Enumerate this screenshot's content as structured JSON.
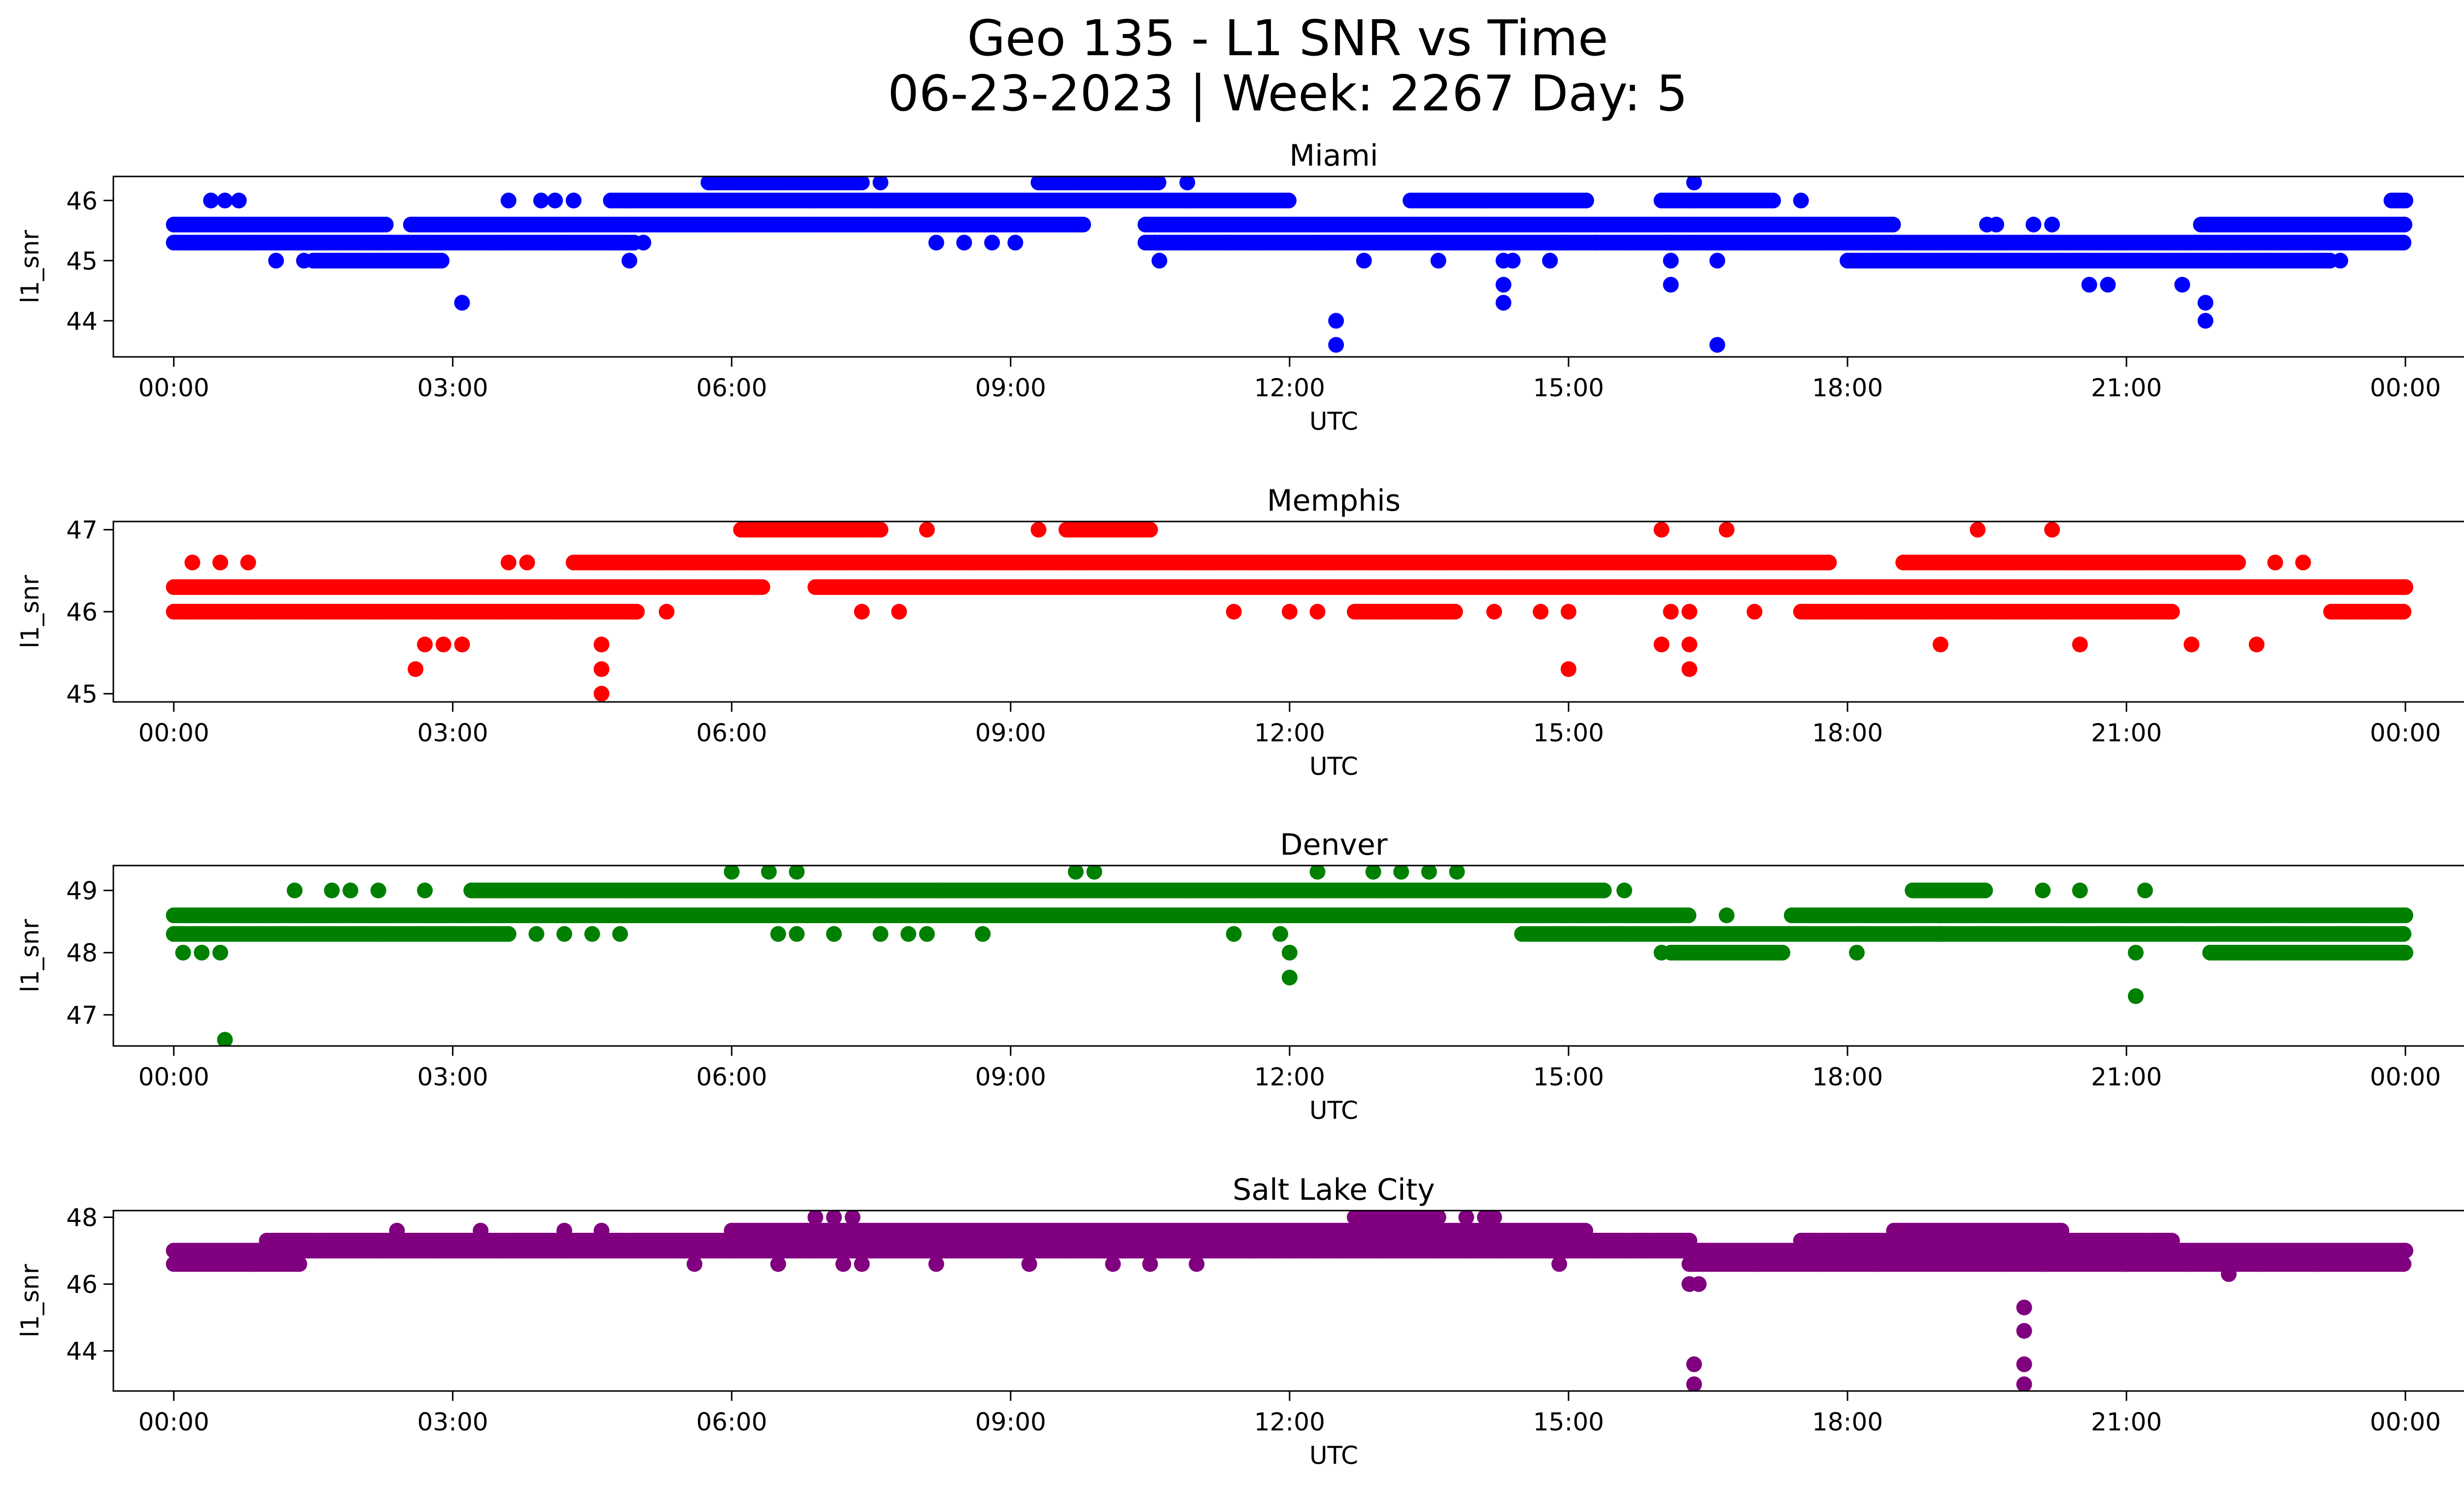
{
  "figure": {
    "title_line1": "Geo 135 - L1 SNR vs Time",
    "title_line2": "06-23-2023 | Week: 2267 Day: 5"
  },
  "chart_data": [
    {
      "type": "scatter",
      "title": "Miami",
      "xlabel": "UTC",
      "ylabel": "l1_snr",
      "color": "#0000ff",
      "x_ticks": [
        "00:00",
        "03:00",
        "06:00",
        "09:00",
        "12:00",
        "15:00",
        "18:00",
        "21:00",
        "00:00"
      ],
      "xlim_hours": [
        -0.65,
        25.6
      ],
      "ylim": [
        43.4,
        46.4
      ],
      "y_ticks": [
        44,
        45,
        46
      ],
      "bands": [
        {
          "y": 45.3,
          "segments": [
            [
              0.0,
              4.95
            ],
            [
              10.45,
              24.0
            ]
          ]
        },
        {
          "y": 45.6,
          "segments": [
            [
              0.0,
              2.3
            ],
            [
              2.55,
              9.8
            ],
            [
              10.45,
              18.5
            ],
            [
              21.8,
              24.0
            ]
          ]
        },
        {
          "y": 46.0,
          "segments": [
            [
              4.7,
              12.0
            ],
            [
              13.3,
              15.2
            ],
            [
              16.0,
              17.2
            ],
            [
              23.85,
              24.0
            ]
          ]
        },
        {
          "y": 46.3,
          "segments": [
            [
              5.75,
              7.4
            ],
            [
              9.3,
              10.6
            ]
          ]
        },
        {
          "y": 45.0,
          "segments": [
            [
              1.5,
              2.9
            ],
            [
              18.0,
              23.2
            ]
          ]
        }
      ],
      "points": [
        [
          0.4,
          46.0
        ],
        [
          0.55,
          46.0
        ],
        [
          0.7,
          46.0
        ],
        [
          1.1,
          45.0
        ],
        [
          1.4,
          45.0
        ],
        [
          3.1,
          44.3
        ],
        [
          3.6,
          46.0
        ],
        [
          3.95,
          46.0
        ],
        [
          4.1,
          46.0
        ],
        [
          4.3,
          46.0
        ],
        [
          4.9,
          45.0
        ],
        [
          5.05,
          45.3
        ],
        [
          7.6,
          46.3
        ],
        [
          8.2,
          45.3
        ],
        [
          8.5,
          45.3
        ],
        [
          8.8,
          45.3
        ],
        [
          9.05,
          45.3
        ],
        [
          10.55,
          45.3
        ],
        [
          10.6,
          45.0
        ],
        [
          10.9,
          46.3
        ],
        [
          11.3,
          45.3
        ],
        [
          12.5,
          44.0
        ],
        [
          12.5,
          43.6
        ],
        [
          12.8,
          45.0
        ],
        [
          13.6,
          45.0
        ],
        [
          14.1,
          46.0
        ],
        [
          14.3,
          45.0
        ],
        [
          14.3,
          44.6
        ],
        [
          14.3,
          44.3
        ],
        [
          14.4,
          45.0
        ],
        [
          14.8,
          45.0
        ],
        [
          15.3,
          45.3
        ],
        [
          16.1,
          45.0
        ],
        [
          16.1,
          44.6
        ],
        [
          16.1,
          45.3
        ],
        [
          16.35,
          46.3
        ],
        [
          16.6,
          45.0
        ],
        [
          16.6,
          43.6
        ],
        [
          17.5,
          46.0
        ],
        [
          19.5,
          45.6
        ],
        [
          19.6,
          45.6
        ],
        [
          20.0,
          45.6
        ],
        [
          20.2,
          45.6
        ],
        [
          20.6,
          44.6
        ],
        [
          20.8,
          44.6
        ],
        [
          21.6,
          44.6
        ],
        [
          21.85,
          44.3
        ],
        [
          21.85,
          44.0
        ],
        [
          22.2,
          45.0
        ],
        [
          22.5,
          45.0
        ],
        [
          23.3,
          45.0
        ]
      ]
    },
    {
      "type": "scatter",
      "title": "Memphis",
      "xlabel": "UTC",
      "ylabel": "l1_snr",
      "color": "#ff0000",
      "x_ticks": [
        "00:00",
        "03:00",
        "06:00",
        "09:00",
        "12:00",
        "15:00",
        "18:00",
        "21:00",
        "00:00"
      ],
      "xlim_hours": [
        -0.65,
        25.6
      ],
      "ylim": [
        44.9,
        47.1
      ],
      "y_ticks": [
        45,
        46,
        47
      ],
      "bands": [
        {
          "y": 46.3,
          "segments": [
            [
              0.0,
              6.35
            ],
            [
              6.9,
              24.0
            ]
          ]
        },
        {
          "y": 46.6,
          "segments": [
            [
              4.3,
              17.8
            ],
            [
              18.6,
              22.2
            ]
          ]
        },
        {
          "y": 46.0,
          "segments": [
            [
              0.0,
              5.0
            ],
            [
              12.7,
              13.8
            ],
            [
              17.5,
              21.5
            ],
            [
              23.2,
              24.0
            ]
          ]
        },
        {
          "y": 47.0,
          "segments": [
            [
              6.1,
              7.6
            ],
            [
              9.6,
              10.5
            ]
          ]
        }
      ],
      "points": [
        [
          0.2,
          46.6
        ],
        [
          0.5,
          46.6
        ],
        [
          0.8,
          46.6
        ],
        [
          2.6,
          45.3
        ],
        [
          2.7,
          45.6
        ],
        [
          2.9,
          45.6
        ],
        [
          3.1,
          45.6
        ],
        [
          3.6,
          46.6
        ],
        [
          3.8,
          46.6
        ],
        [
          4.6,
          45.6
        ],
        [
          4.6,
          45.3
        ],
        [
          4.6,
          45.0
        ],
        [
          5.3,
          46.0
        ],
        [
          7.4,
          46.0
        ],
        [
          7.8,
          46.0
        ],
        [
          8.1,
          47.0
        ],
        [
          9.3,
          47.0
        ],
        [
          11.4,
          46.0
        ],
        [
          12.0,
          46.0
        ],
        [
          12.3,
          46.0
        ],
        [
          14.2,
          46.0
        ],
        [
          14.7,
          46.0
        ],
        [
          15.0,
          45.3
        ],
        [
          15.0,
          46.0
        ],
        [
          16.0,
          47.0
        ],
        [
          16.0,
          45.6
        ],
        [
          16.1,
          46.0
        ],
        [
          16.3,
          46.0
        ],
        [
          16.3,
          45.6
        ],
        [
          16.3,
          45.3
        ],
        [
          16.7,
          47.0
        ],
        [
          17.0,
          46.0
        ],
        [
          19.0,
          45.6
        ],
        [
          19.4,
          47.0
        ],
        [
          20.2,
          47.0
        ],
        [
          20.5,
          45.6
        ],
        [
          21.7,
          45.6
        ],
        [
          22.4,
          45.6
        ],
        [
          22.6,
          46.6
        ],
        [
          22.9,
          46.6
        ]
      ]
    },
    {
      "type": "scatter",
      "title": "Denver",
      "xlabel": "UTC",
      "ylabel": "l1_snr",
      "color": "#008000",
      "x_ticks": [
        "00:00",
        "03:00",
        "06:00",
        "09:00",
        "12:00",
        "15:00",
        "18:00",
        "21:00",
        "00:00"
      ],
      "xlim_hours": [
        -0.65,
        25.6
      ],
      "ylim": [
        46.5,
        49.4
      ],
      "y_ticks": [
        47,
        48,
        49
      ],
      "bands": [
        {
          "y": 48.6,
          "segments": [
            [
              0.0,
              16.3
            ],
            [
              17.4,
              24.0
            ]
          ]
        },
        {
          "y": 48.3,
          "segments": [
            [
              0.0,
              3.6
            ],
            [
              14.5,
              24.0
            ]
          ]
        },
        {
          "y": 49.0,
          "segments": [
            [
              3.2,
              15.4
            ],
            [
              18.7,
              19.5
            ]
          ]
        },
        {
          "y": 48.0,
          "segments": [
            [
              16.1,
              17.3
            ],
            [
              21.9,
              24.0
            ]
          ]
        }
      ],
      "points": [
        [
          0.1,
          48.0
        ],
        [
          0.3,
          48.0
        ],
        [
          0.5,
          48.0
        ],
        [
          0.55,
          46.6
        ],
        [
          1.3,
          49.0
        ],
        [
          1.7,
          49.0
        ],
        [
          1.9,
          49.0
        ],
        [
          2.2,
          49.0
        ],
        [
          2.7,
          49.0
        ],
        [
          3.9,
          48.3
        ],
        [
          4.2,
          48.3
        ],
        [
          4.5,
          48.3
        ],
        [
          4.8,
          48.3
        ],
        [
          6.0,
          49.3
        ],
        [
          6.4,
          49.3
        ],
        [
          6.5,
          48.3
        ],
        [
          6.7,
          49.3
        ],
        [
          6.7,
          48.3
        ],
        [
          7.1,
          48.3
        ],
        [
          7.6,
          48.3
        ],
        [
          7.9,
          48.3
        ],
        [
          8.1,
          48.3
        ],
        [
          8.7,
          48.3
        ],
        [
          9.7,
          49.3
        ],
        [
          9.9,
          49.3
        ],
        [
          11.4,
          48.3
        ],
        [
          11.9,
          48.3
        ],
        [
          12.0,
          48.0
        ],
        [
          12.0,
          47.6
        ],
        [
          12.3,
          49.3
        ],
        [
          12.9,
          49.3
        ],
        [
          13.2,
          49.3
        ],
        [
          13.5,
          49.3
        ],
        [
          13.8,
          49.3
        ],
        [
          15.6,
          49.0
        ],
        [
          16.0,
          48.0
        ],
        [
          16.7,
          48.6
        ],
        [
          18.1,
          48.0
        ],
        [
          19.0,
          48.3
        ],
        [
          20.1,
          49.0
        ],
        [
          20.5,
          49.0
        ],
        [
          21.1,
          47.3
        ],
        [
          21.1,
          48.0
        ],
        [
          21.2,
          49.0
        ]
      ]
    },
    {
      "type": "scatter",
      "title": "Salt Lake City",
      "xlabel": "UTC",
      "ylabel": "l1_snr",
      "color": "#800080",
      "x_ticks": [
        "00:00",
        "03:00",
        "06:00",
        "09:00",
        "12:00",
        "15:00",
        "18:00",
        "21:00",
        "00:00"
      ],
      "xlim_hours": [
        -0.65,
        25.6
      ],
      "ylim": [
        42.8,
        48.2
      ],
      "y_ticks": [
        44,
        46,
        48
      ],
      "bands": [
        {
          "y": 46.6,
          "segments": [
            [
              0.0,
              1.35
            ],
            [
              16.3,
              24.0
            ]
          ]
        },
        {
          "y": 47.0,
          "segments": [
            [
              0.0,
              24.0
            ]
          ]
        },
        {
          "y": 47.3,
          "segments": [
            [
              1.0,
              16.3
            ],
            [
              17.5,
              21.5
            ]
          ]
        },
        {
          "y": 47.6,
          "segments": [
            [
              6.0,
              15.2
            ],
            [
              18.5,
              20.3
            ]
          ]
        },
        {
          "y": 48.0,
          "segments": [
            [
              12.7,
              13.6
            ]
          ]
        }
      ],
      "points": [
        [
          2.4,
          47.6
        ],
        [
          3.3,
          47.6
        ],
        [
          4.2,
          47.6
        ],
        [
          4.6,
          47.6
        ],
        [
          5.6,
          46.6
        ],
        [
          6.5,
          46.6
        ],
        [
          6.9,
          48.0
        ],
        [
          7.1,
          48.0
        ],
        [
          7.3,
          48.0
        ],
        [
          7.2,
          46.6
        ],
        [
          7.4,
          46.6
        ],
        [
          8.2,
          46.6
        ],
        [
          9.2,
          46.6
        ],
        [
          10.1,
          46.6
        ],
        [
          10.5,
          46.6
        ],
        [
          11.0,
          46.6
        ],
        [
          13.9,
          48.0
        ],
        [
          14.1,
          48.0
        ],
        [
          14.2,
          48.0
        ],
        [
          14.9,
          46.6
        ],
        [
          16.3,
          46.0
        ],
        [
          16.35,
          43.6
        ],
        [
          16.35,
          43.0
        ],
        [
          16.4,
          46.0
        ],
        [
          19.9,
          45.3
        ],
        [
          19.9,
          44.6
        ],
        [
          19.9,
          43.6
        ],
        [
          19.9,
          43.0
        ],
        [
          20.1,
          46.6
        ],
        [
          21.0,
          46.6
        ],
        [
          22.1,
          46.3
        ],
        [
          22.4,
          46.6
        ]
      ]
    }
  ]
}
